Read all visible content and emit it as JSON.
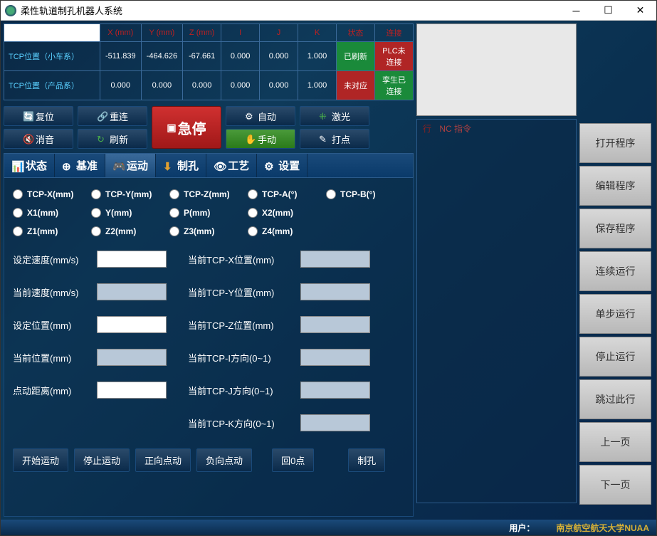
{
  "window": {
    "title": "柔性轨道制孔机器人系统"
  },
  "table": {
    "headers": [
      "X (mm)",
      "Y (mm)",
      "Z (mm)",
      "I",
      "J",
      "K",
      "状态",
      "连接"
    ],
    "row1_label": "TCP位置（小车系）",
    "row1": [
      "-511.839",
      "-464.626",
      "-67.661",
      "0.000",
      "0.000",
      "1.000"
    ],
    "row1_status": "已刷新",
    "row1_conn": "PLC未连接",
    "row2_label": "TCP位置（产品系）",
    "row2": [
      "0.000",
      "0.000",
      "0.000",
      "0.000",
      "0.000",
      "1.000"
    ],
    "row2_status": "未对应",
    "row2_conn": "孪生已连接"
  },
  "ctrl": {
    "reset": "复位",
    "reconnect": "重连",
    "estop": "急停",
    "auto": "自动",
    "laser": "激光",
    "mute": "消音",
    "refresh": "刷新",
    "manual": "手动",
    "dot": "打点"
  },
  "tabs": [
    "状态",
    "基准",
    "运动",
    "制孔",
    "工艺",
    "设置"
  ],
  "radios": {
    "r1": [
      "TCP-X(mm)",
      "TCP-Y(mm)",
      "TCP-Z(mm)",
      "TCP-A(°)",
      "TCP-B(°)"
    ],
    "r2": [
      "X1(mm)",
      "Y(mm)",
      "P(mm)",
      "X2(mm)"
    ],
    "r3": [
      "Z1(mm)",
      "Z2(mm)",
      "Z3(mm)",
      "Z4(mm)"
    ]
  },
  "values_left": [
    "设定速度(mm/s)",
    "当前速度(mm/s)",
    "设定位置(mm)",
    "当前位置(mm)",
    "点动距离(mm)"
  ],
  "values_right": [
    "当前TCP-X位置(mm)",
    "当前TCP-Y位置(mm)",
    "当前TCP-Z位置(mm)",
    "当前TCP-I方向(0~1)",
    "当前TCP-J方向(0~1)",
    "当前TCP-K方向(0~1)"
  ],
  "bottom_btns": [
    "开始运动",
    "停止运动",
    "正向点动",
    "负向点动",
    "回0点",
    "制孔"
  ],
  "nc": {
    "col1": "行",
    "col2": "NC 指令"
  },
  "side": [
    "打开程序",
    "编辑程序",
    "保存程序",
    "连续运行",
    "单步运行",
    "停止运行",
    "跳过此行",
    "上一页",
    "下一页"
  ],
  "footer": {
    "user_label": "用户：",
    "org": "南京航空航天大学NUAA"
  },
  "colors": {
    "bg_grad_a": "#0a2845",
    "bg_grad_b": "#0e3a5a",
    "status_green": "#1a8a3a",
    "status_red": "#b02525",
    "stop_red": "#d03030",
    "accent": "#5ad0ff",
    "gold": "#d4af37"
  }
}
